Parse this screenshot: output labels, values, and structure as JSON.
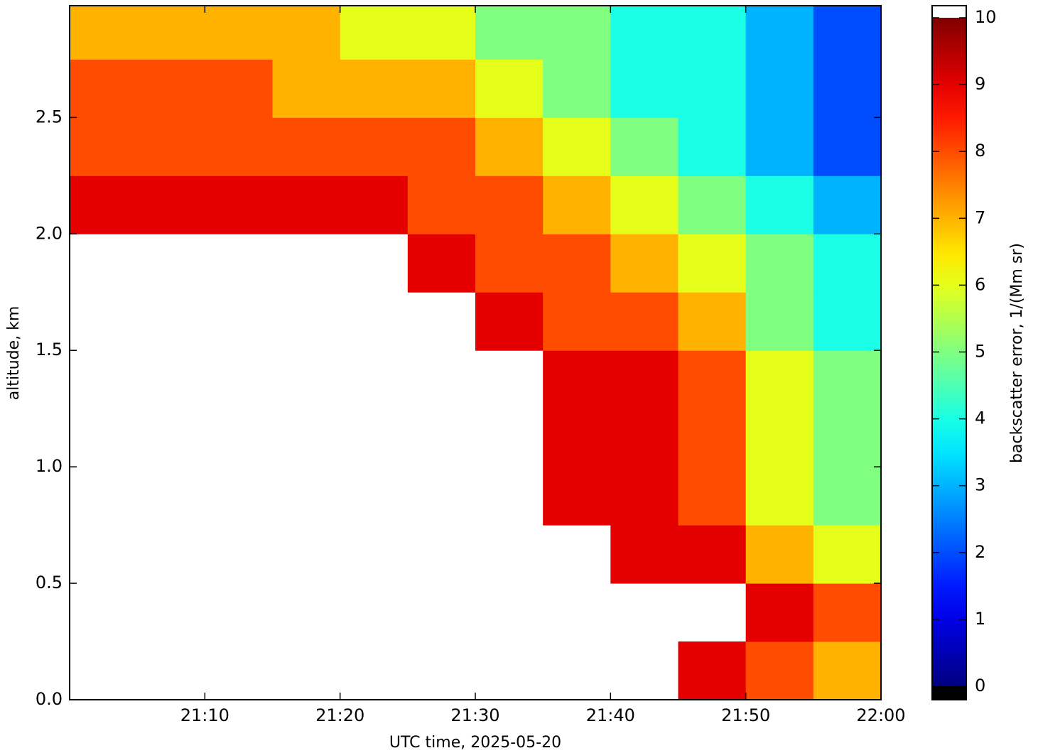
{
  "chart_data": {
    "type": "heatmap",
    "colormap": "jet",
    "xlabel": "UTC time,  2025-05-20",
    "ylabel": "altitude, km",
    "colorbar_label": "backscatter error, 1/(Mm sr)",
    "xlim": [
      1260,
      1320
    ],
    "ylim": [
      0,
      2.98
    ],
    "xticks": [
      {
        "value": 1270,
        "label": "21:10"
      },
      {
        "value": 1280,
        "label": "21:20"
      },
      {
        "value": 1290,
        "label": "21:30"
      },
      {
        "value": 1300,
        "label": "21:40"
      },
      {
        "value": 1310,
        "label": "21:50"
      },
      {
        "value": 1320,
        "label": "22:00"
      }
    ],
    "yticks": [
      {
        "value": 0,
        "label": "0.0"
      },
      0.5,
      {
        "value": 1,
        "label": "1.0"
      },
      1.5,
      {
        "value": 2,
        "label": "2.0"
      },
      2.5
    ],
    "clim": [
      0,
      10
    ],
    "cticks": [
      0,
      1,
      2,
      3,
      4,
      5,
      6,
      7,
      8,
      9,
      10
    ],
    "x_edges": [
      1260,
      1265,
      1270,
      1275,
      1280,
      1285,
      1290,
      1295,
      1300,
      1305,
      1310,
      1315,
      1320
    ],
    "y_edges": [
      0,
      0.25,
      0.5,
      0.75,
      1,
      1.25,
      1.5,
      1.75,
      2,
      2.25,
      2.5,
      2.75,
      3
    ],
    "z": [
      [
        null,
        null,
        null,
        null,
        null,
        null,
        null,
        null,
        null,
        9,
        8,
        7
      ],
      [
        null,
        null,
        null,
        null,
        null,
        null,
        null,
        null,
        null,
        null,
        9,
        8
      ],
      [
        null,
        null,
        null,
        null,
        null,
        null,
        null,
        null,
        9,
        9,
        7,
        6
      ],
      [
        null,
        null,
        null,
        null,
        null,
        null,
        null,
        9,
        9,
        8,
        6,
        5
      ],
      [
        null,
        null,
        null,
        null,
        null,
        null,
        null,
        9,
        9,
        8,
        6,
        5
      ],
      [
        null,
        null,
        null,
        null,
        null,
        null,
        null,
        9,
        9,
        8,
        6,
        5
      ],
      [
        null,
        null,
        null,
        null,
        null,
        null,
        9,
        8,
        8,
        7,
        5,
        4
      ],
      [
        null,
        null,
        null,
        null,
        null,
        9,
        8,
        8,
        7,
        6,
        5,
        4
      ],
      [
        9,
        9,
        9,
        9,
        9,
        8,
        8,
        7,
        6,
        5,
        4,
        3
      ],
      [
        8,
        8,
        8,
        8,
        8,
        8,
        7,
        6,
        5,
        4,
        3,
        2
      ],
      [
        8,
        8,
        8,
        7,
        7,
        7,
        6,
        5,
        4,
        4,
        3,
        2
      ],
      [
        7,
        7,
        7,
        7,
        6,
        6,
        5,
        5,
        4,
        4,
        3,
        2
      ]
    ]
  }
}
